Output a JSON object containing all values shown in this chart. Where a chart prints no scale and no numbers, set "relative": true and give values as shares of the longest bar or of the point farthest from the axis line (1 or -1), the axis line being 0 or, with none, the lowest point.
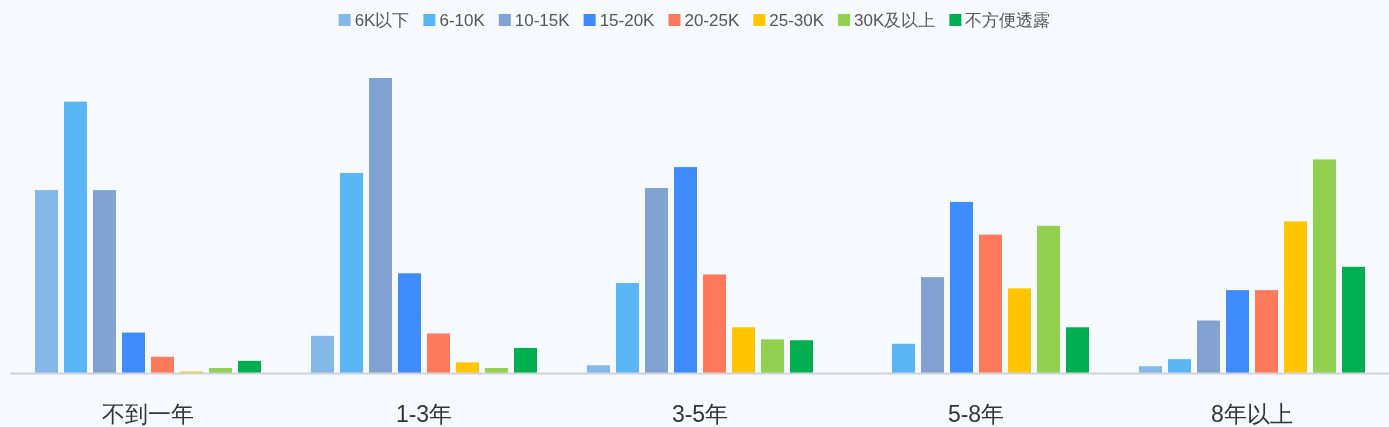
{
  "chart_data": {
    "type": "bar",
    "relative": true,
    "legend": "top",
    "marker": "square",
    "categories": [
      "不到一年",
      "1-3年",
      "3-5年",
      "5-8年",
      "8年以上"
    ],
    "series": [
      {
        "name": "6K以下",
        "color": "#83b8e8",
        "values": [
          0.62,
          0.126,
          0.026,
          0,
          0.023
        ]
      },
      {
        "name": "6-10K",
        "color": "#5bb6f5",
        "values": [
          0.92,
          0.678,
          0.305,
          0.099,
          0.047
        ]
      },
      {
        "name": "10-15K",
        "color": "#82a3d1",
        "values": [
          0.62,
          1,
          0.627,
          0.325,
          0.178
        ]
      },
      {
        "name": "15-20K",
        "color": "#3e8bfd",
        "values": [
          0.137,
          0.338,
          0.698,
          0.58,
          0.281
        ]
      },
      {
        "name": "20-25K",
        "color": "#ff7a5c",
        "values": [
          0.055,
          0.134,
          0.334,
          0.469,
          0.281
        ]
      },
      {
        "name": "25-30K",
        "color": "#ffc600",
        "values": [
          0.005,
          0.036,
          0.155,
          0.287,
          0.514
        ]
      },
      {
        "name": "30K及以上",
        "color": "#92d050",
        "values": [
          0.017,
          0.017,
          0.114,
          0.499,
          0.724
        ]
      },
      {
        "name": "不方便透露",
        "color": "#00b050",
        "values": [
          0.041,
          0.085,
          0.111,
          0.155,
          0.36
        ]
      }
    ]
  }
}
